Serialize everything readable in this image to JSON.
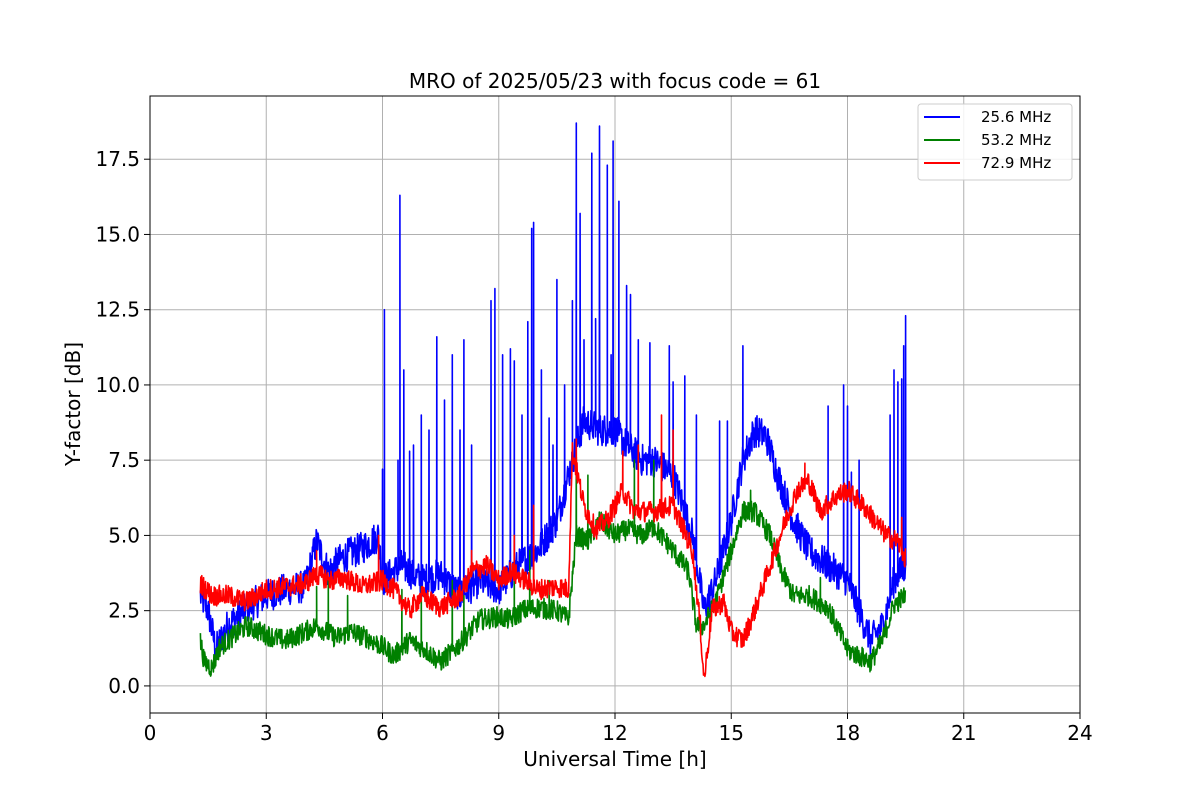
{
  "chart_data": {
    "type": "line",
    "title": "MRO of 2025/05/23 with focus code = 61",
    "xlabel": "Universal Time [h]",
    "ylabel": "Y-factor [dB]",
    "xlim": [
      0,
      24
    ],
    "ylim": [
      -0.9,
      19.6
    ],
    "xticks": [
      0,
      3,
      6,
      9,
      12,
      15,
      18,
      21,
      24
    ],
    "yticks": [
      0.0,
      2.5,
      5.0,
      7.5,
      10.0,
      12.5,
      15.0,
      17.5
    ],
    "ytick_labels": [
      "0.0",
      "2.5",
      "5.0",
      "7.5",
      "10.0",
      "12.5",
      "15.0",
      "17.5"
    ],
    "grid": true,
    "legend_position": "top-right",
    "colors": {
      "s1": "#0000ff",
      "s2": "#008000",
      "s3": "#ff0000",
      "grid": "#b0b0b0"
    },
    "series": [
      {
        "name": "25.6 MHz",
        "color": "#0000ff",
        "baseline": [
          [
            1.3,
            3.0
          ],
          [
            1.5,
            2.5
          ],
          [
            1.7,
            1.2
          ],
          [
            2.0,
            2.0
          ],
          [
            2.5,
            2.6
          ],
          [
            3.0,
            3.0
          ],
          [
            3.5,
            3.2
          ],
          [
            4.0,
            3.3
          ],
          [
            4.3,
            4.8
          ],
          [
            4.6,
            3.8
          ],
          [
            5.0,
            4.3
          ],
          [
            5.5,
            4.6
          ],
          [
            5.9,
            5.0
          ],
          [
            6.0,
            3.5
          ],
          [
            6.5,
            4.0
          ],
          [
            7.0,
            3.5
          ],
          [
            7.5,
            3.7
          ],
          [
            8.0,
            3.0
          ],
          [
            8.5,
            3.5
          ],
          [
            9.0,
            3.2
          ],
          [
            9.5,
            4.0
          ],
          [
            10.0,
            4.5
          ],
          [
            10.5,
            5.5
          ],
          [
            10.9,
            7.5
          ],
          [
            11.2,
            8.8
          ],
          [
            11.6,
            8.5
          ],
          [
            12.0,
            8.5
          ],
          [
            12.3,
            8.0
          ],
          [
            12.7,
            7.5
          ],
          [
            13.0,
            7.5
          ],
          [
            13.5,
            7.0
          ],
          [
            14.0,
            5.0
          ],
          [
            14.3,
            2.5
          ],
          [
            14.6,
            3.5
          ],
          [
            15.0,
            5.5
          ],
          [
            15.3,
            7.5
          ],
          [
            15.6,
            8.5
          ],
          [
            15.9,
            8.3
          ],
          [
            16.2,
            7.0
          ],
          [
            16.6,
            5.5
          ],
          [
            17.0,
            4.5
          ],
          [
            17.5,
            4.0
          ],
          [
            18.0,
            3.5
          ],
          [
            18.3,
            2.5
          ],
          [
            18.6,
            1.5
          ],
          [
            18.9,
            2.0
          ],
          [
            19.2,
            3.5
          ],
          [
            19.5,
            4.0
          ]
        ],
        "spikes": [
          [
            6.0,
            7.2
          ],
          [
            6.05,
            12.5
          ],
          [
            6.4,
            7.5
          ],
          [
            6.45,
            16.3
          ],
          [
            6.55,
            10.5
          ],
          [
            6.7,
            7.8
          ],
          [
            6.8,
            8.0
          ],
          [
            7.0,
            9.0
          ],
          [
            7.2,
            8.5
          ],
          [
            7.4,
            11.6
          ],
          [
            7.6,
            9.5
          ],
          [
            7.8,
            11.0
          ],
          [
            8.0,
            8.5
          ],
          [
            8.1,
            11.5
          ],
          [
            8.3,
            8.0
          ],
          [
            8.8,
            12.8
          ],
          [
            8.9,
            13.2
          ],
          [
            9.1,
            11.0
          ],
          [
            9.3,
            11.2
          ],
          [
            9.4,
            10.8
          ],
          [
            9.6,
            9.0
          ],
          [
            9.75,
            12.1
          ],
          [
            9.85,
            15.2
          ],
          [
            9.9,
            15.4
          ],
          [
            10.1,
            10.5
          ],
          [
            10.3,
            8.9
          ],
          [
            10.4,
            8.0
          ],
          [
            10.5,
            13.5
          ],
          [
            10.7,
            10.0
          ],
          [
            10.9,
            12.8
          ],
          [
            11.0,
            18.7
          ],
          [
            11.1,
            15.7
          ],
          [
            11.2,
            11.5
          ],
          [
            11.4,
            17.7
          ],
          [
            11.5,
            12.2
          ],
          [
            11.6,
            18.6
          ],
          [
            11.8,
            17.3
          ],
          [
            11.9,
            11.0
          ],
          [
            11.95,
            18.1
          ],
          [
            12.1,
            16.1
          ],
          [
            12.3,
            13.3
          ],
          [
            12.4,
            13.0
          ],
          [
            12.6,
            11.5
          ],
          [
            12.9,
            11.4
          ],
          [
            13.4,
            11.3
          ],
          [
            13.5,
            10.1
          ],
          [
            13.8,
            10.3
          ],
          [
            14.1,
            9.0
          ],
          [
            14.7,
            8.8
          ],
          [
            14.9,
            8.8
          ],
          [
            15.3,
            11.3
          ],
          [
            15.5,
            8.0
          ],
          [
            17.5,
            9.3
          ],
          [
            17.9,
            10.0
          ],
          [
            18.0,
            9.3
          ],
          [
            18.1,
            7.1
          ],
          [
            18.3,
            7.5
          ],
          [
            19.1,
            9.0
          ],
          [
            19.2,
            10.5
          ],
          [
            19.3,
            10.1
          ],
          [
            19.4,
            10.2
          ],
          [
            19.45,
            11.3
          ],
          [
            19.5,
            12.3
          ]
        ]
      },
      {
        "name": "53.2 MHz",
        "color": "#008000",
        "baseline": [
          [
            1.3,
            1.5
          ],
          [
            1.4,
            0.8
          ],
          [
            1.6,
            0.6
          ],
          [
            1.8,
            1.3
          ],
          [
            2.0,
            1.5
          ],
          [
            2.5,
            2.0
          ],
          [
            3.0,
            1.7
          ],
          [
            3.5,
            1.5
          ],
          [
            4.0,
            1.8
          ],
          [
            4.3,
            2.0
          ],
          [
            4.8,
            1.6
          ],
          [
            5.2,
            1.8
          ],
          [
            5.6,
            1.6
          ],
          [
            6.0,
            1.3
          ],
          [
            6.3,
            1.0
          ],
          [
            6.7,
            1.5
          ],
          [
            7.0,
            1.3
          ],
          [
            7.5,
            0.8
          ],
          [
            8.0,
            1.4
          ],
          [
            8.5,
            2.2
          ],
          [
            9.0,
            2.3
          ],
          [
            9.3,
            2.2
          ],
          [
            9.6,
            2.5
          ],
          [
            10.0,
            2.6
          ],
          [
            10.5,
            2.5
          ],
          [
            10.8,
            2.2
          ],
          [
            11.0,
            5.0
          ],
          [
            11.3,
            4.8
          ],
          [
            11.6,
            5.5
          ],
          [
            12.0,
            5.0
          ],
          [
            12.3,
            5.2
          ],
          [
            12.7,
            5.0
          ],
          [
            13.0,
            5.3
          ],
          [
            13.5,
            4.5
          ],
          [
            13.9,
            3.8
          ],
          [
            14.1,
            2.0
          ],
          [
            14.3,
            2.0
          ],
          [
            14.6,
            2.8
          ],
          [
            15.0,
            4.5
          ],
          [
            15.3,
            5.8
          ],
          [
            15.6,
            5.8
          ],
          [
            16.0,
            5.0
          ],
          [
            16.3,
            3.8
          ],
          [
            16.6,
            3.0
          ],
          [
            17.0,
            3.0
          ],
          [
            17.5,
            2.6
          ],
          [
            18.0,
            1.2
          ],
          [
            18.3,
            1.0
          ],
          [
            18.6,
            0.8
          ],
          [
            18.9,
            1.5
          ],
          [
            19.2,
            2.7
          ],
          [
            19.5,
            3.0
          ]
        ],
        "spikes": [
          [
            4.3,
            3.3
          ],
          [
            4.6,
            3.5
          ],
          [
            5.1,
            3.0
          ],
          [
            6.5,
            3.2
          ],
          [
            7.0,
            3.3
          ],
          [
            7.8,
            3.5
          ],
          [
            8.1,
            3.0
          ],
          [
            9.4,
            4.0
          ],
          [
            9.8,
            4.5
          ],
          [
            10.3,
            3.5
          ],
          [
            11.0,
            7.6
          ],
          [
            11.3,
            7.0
          ],
          [
            12.5,
            7.5
          ],
          [
            13.0,
            7.5
          ],
          [
            15.5,
            6.5
          ],
          [
            17.3,
            3.6
          ]
        ]
      },
      {
        "name": "72.9 MHz",
        "color": "#ff0000",
        "baseline": [
          [
            1.3,
            3.4
          ],
          [
            1.6,
            3.0
          ],
          [
            2.0,
            3.0
          ],
          [
            2.5,
            2.8
          ],
          [
            3.0,
            3.2
          ],
          [
            3.5,
            3.3
          ],
          [
            4.0,
            3.4
          ],
          [
            4.3,
            3.7
          ],
          [
            4.7,
            3.5
          ],
          [
            5.0,
            3.6
          ],
          [
            5.5,
            3.3
          ],
          [
            6.0,
            3.5
          ],
          [
            6.3,
            3.2
          ],
          [
            6.7,
            2.5
          ],
          [
            7.0,
            3.0
          ],
          [
            7.5,
            2.6
          ],
          [
            8.0,
            3.0
          ],
          [
            8.3,
            3.8
          ],
          [
            8.7,
            4.0
          ],
          [
            9.0,
            3.5
          ],
          [
            9.3,
            3.8
          ],
          [
            9.7,
            3.5
          ],
          [
            10.0,
            3.2
          ],
          [
            10.5,
            3.3
          ],
          [
            10.8,
            3.2
          ],
          [
            10.9,
            7.8
          ],
          [
            11.2,
            6.0
          ],
          [
            11.5,
            5.2
          ],
          [
            11.8,
            5.5
          ],
          [
            12.2,
            6.5
          ],
          [
            12.5,
            5.8
          ],
          [
            13.0,
            5.8
          ],
          [
            13.5,
            6.0
          ],
          [
            14.0,
            4.5
          ],
          [
            14.2,
            2.0
          ],
          [
            14.3,
            0.2
          ],
          [
            14.5,
            2.5
          ],
          [
            14.8,
            2.8
          ],
          [
            15.0,
            1.8
          ],
          [
            15.3,
            1.5
          ],
          [
            15.6,
            2.5
          ],
          [
            16.0,
            4.0
          ],
          [
            16.4,
            5.5
          ],
          [
            16.7,
            6.5
          ],
          [
            17.0,
            6.8
          ],
          [
            17.3,
            5.8
          ],
          [
            17.7,
            6.3
          ],
          [
            18.0,
            6.5
          ],
          [
            18.4,
            6.0
          ],
          [
            18.7,
            5.5
          ],
          [
            19.0,
            5.0
          ],
          [
            19.3,
            4.8
          ],
          [
            19.5,
            4.2
          ]
        ],
        "spikes": [
          [
            4.3,
            4.5
          ],
          [
            5.9,
            5.0
          ],
          [
            8.3,
            4.5
          ],
          [
            9.4,
            5.0
          ],
          [
            9.9,
            6.0
          ],
          [
            11.0,
            8.2
          ],
          [
            12.2,
            7.8
          ],
          [
            12.6,
            8.0
          ],
          [
            13.2,
            9.0
          ],
          [
            13.5,
            8.5
          ],
          [
            16.9,
            7.4
          ],
          [
            19.4,
            5.6
          ]
        ]
      }
    ]
  }
}
